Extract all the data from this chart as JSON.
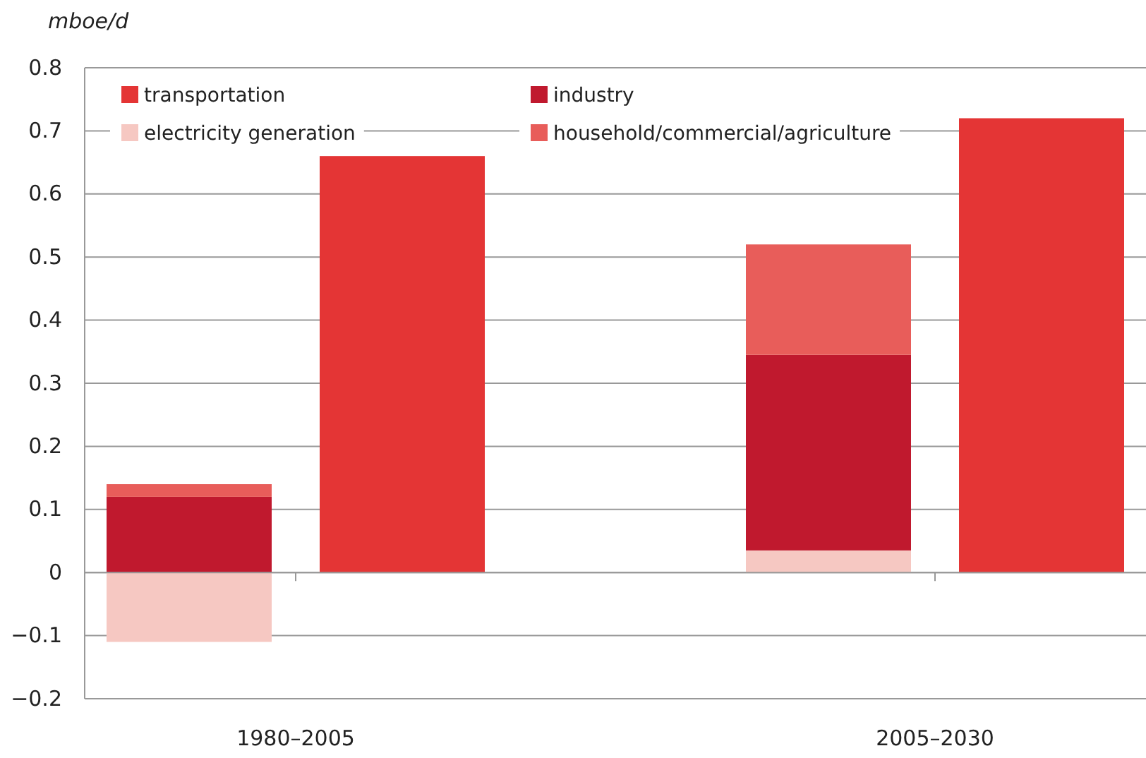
{
  "chart_data": {
    "type": "bar",
    "ylabel": "mboe/d",
    "categories": [
      "1980–2005",
      null,
      null,
      "2005–2030",
      null
    ],
    "stacked": true,
    "series": [
      {
        "name": "transportation",
        "color": "#e43535",
        "values": [
          null,
          0.66,
          null,
          null,
          0.72
        ]
      },
      {
        "name": "electricity generation",
        "color": "#f6c8c2",
        "values": [
          -0.11,
          null,
          null,
          0.035,
          null
        ]
      },
      {
        "name": "industry",
        "color": "#c0192e",
        "values": [
          0.12,
          null,
          null,
          0.31,
          null
        ]
      },
      {
        "name": "household/commercial/agriculture",
        "color": "#e85d5a",
        "values": [
          0.02,
          null,
          null,
          0.175,
          null
        ]
      }
    ],
    "ylim": [
      -0.2,
      0.8
    ],
    "yticks": [
      {
        "value": -0.2,
        "label": "−0.2"
      },
      {
        "value": -0.1,
        "label": "−0.1"
      },
      0,
      0.1,
      0.2,
      0.3,
      0.4,
      0.5,
      0.6,
      0.7,
      0.8
    ],
    "grid": "y",
    "legend": "top left"
  }
}
